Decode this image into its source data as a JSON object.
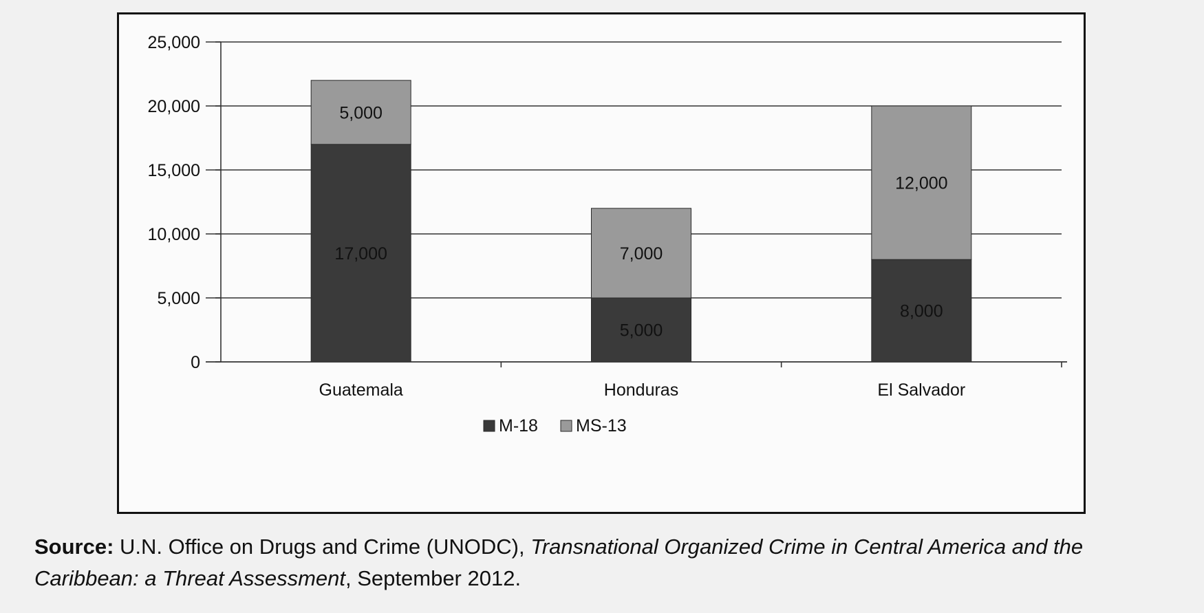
{
  "chart_data": {
    "type": "bar",
    "stacked": true,
    "categories": [
      "Guatemala",
      "Honduras",
      "El Salvador"
    ],
    "series": [
      {
        "name": "M-18",
        "values": [
          17000,
          5000,
          8000
        ],
        "color": "#3a3a3a"
      },
      {
        "name": "MS-13",
        "values": [
          5000,
          7000,
          12000
        ],
        "color": "#9a9a9a"
      }
    ],
    "data_labels": [
      [
        "17,000",
        "5,000",
        "8,000"
      ],
      [
        "5,000",
        "7,000",
        "12,000"
      ]
    ],
    "ylim": [
      0,
      25000
    ],
    "yticks": [
      0,
      5000,
      10000,
      15000,
      20000,
      25000
    ],
    "ytick_labels": [
      "0",
      "5,000",
      "10,000",
      "15,000",
      "20,000",
      "25,000"
    ],
    "grid": true,
    "legend": "bottom-center"
  },
  "source": {
    "label": "Source:",
    "text_before": " U.N. Office on Drugs and Crime (UNODC), ",
    "title": "Transnational Organized Crime in Central America and the Caribbean: a Threat Assessment",
    "text_after": ", September 2012."
  }
}
